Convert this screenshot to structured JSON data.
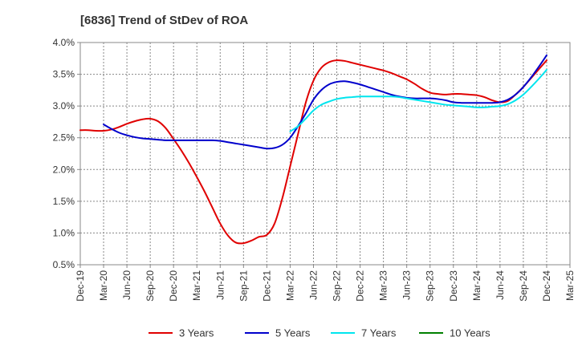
{
  "chart_data": {
    "type": "line",
    "title": "[6836]  Trend of StDev of ROA",
    "xlabel": "",
    "ylabel": "",
    "ylim": [
      0.5,
      4.0
    ],
    "y_ticks": [
      "0.5%",
      "1.0%",
      "1.5%",
      "2.0%",
      "2.5%",
      "3.0%",
      "3.5%",
      "4.0%"
    ],
    "x_ticks": [
      "Dec-19",
      "Mar-20",
      "Jun-20",
      "Sep-20",
      "Dec-20",
      "Mar-21",
      "Jun-21",
      "Sep-21",
      "Dec-21",
      "Mar-22",
      "Jun-22",
      "Sep-22",
      "Dec-22",
      "Mar-23",
      "Jun-23",
      "Sep-23",
      "Dec-23",
      "Mar-24",
      "Jun-24",
      "Sep-24",
      "Dec-24",
      "Mar-25"
    ],
    "grid": true,
    "legend_position": "bottom",
    "series": [
      {
        "name": "3 Years",
        "color": "#e00000",
        "points": [
          [
            "Dec-19",
            2.62
          ],
          [
            "Jan-20",
            2.62
          ],
          [
            "Feb-20",
            2.61
          ],
          [
            "Mar-20",
            2.61
          ],
          [
            "Apr-20",
            2.63
          ],
          [
            "May-20",
            2.67
          ],
          [
            "Jun-20",
            2.72
          ],
          [
            "Jul-20",
            2.76
          ],
          [
            "Aug-20",
            2.79
          ],
          [
            "Sep-20",
            2.8
          ],
          [
            "Oct-20",
            2.76
          ],
          [
            "Nov-20",
            2.65
          ],
          [
            "Dec-20",
            2.48
          ],
          [
            "Jan-21",
            2.3
          ],
          [
            "Feb-21",
            2.1
          ],
          [
            "Mar-21",
            1.88
          ],
          [
            "Apr-21",
            1.65
          ],
          [
            "May-21",
            1.4
          ],
          [
            "Jun-21",
            1.15
          ],
          [
            "Jul-21",
            0.96
          ],
          [
            "Aug-21",
            0.85
          ],
          [
            "Sep-21",
            0.84
          ],
          [
            "Oct-21",
            0.88
          ],
          [
            "Nov-21",
            0.94
          ],
          [
            "Dec-21",
            0.97
          ],
          [
            "Jan-22",
            1.15
          ],
          [
            "Feb-22",
            1.55
          ],
          [
            "Mar-22",
            2.05
          ],
          [
            "Apr-22",
            2.55
          ],
          [
            "May-22",
            3.05
          ],
          [
            "Jun-22",
            3.4
          ],
          [
            "Jul-22",
            3.6
          ],
          [
            "Aug-22",
            3.69
          ],
          [
            "Sep-22",
            3.72
          ],
          [
            "Oct-22",
            3.71
          ],
          [
            "Nov-22",
            3.68
          ],
          [
            "Dec-22",
            3.65
          ],
          [
            "Jan-23",
            3.62
          ],
          [
            "Feb-23",
            3.59
          ],
          [
            "Mar-23",
            3.56
          ],
          [
            "Apr-23",
            3.52
          ],
          [
            "May-23",
            3.47
          ],
          [
            "Jun-23",
            3.42
          ],
          [
            "Jul-23",
            3.35
          ],
          [
            "Aug-23",
            3.27
          ],
          [
            "Sep-23",
            3.21
          ],
          [
            "Oct-23",
            3.19
          ],
          [
            "Nov-23",
            3.18
          ],
          [
            "Dec-23",
            3.19
          ],
          [
            "Jan-24",
            3.19
          ],
          [
            "Feb-24",
            3.18
          ],
          [
            "Mar-24",
            3.17
          ],
          [
            "Apr-24",
            3.14
          ],
          [
            "May-24",
            3.09
          ],
          [
            "Jun-24",
            3.06
          ],
          [
            "Jul-24",
            3.08
          ],
          [
            "Aug-24",
            3.18
          ],
          [
            "Sep-24",
            3.3
          ],
          [
            "Oct-24",
            3.44
          ],
          [
            "Nov-24",
            3.58
          ],
          [
            "Dec-24",
            3.72
          ]
        ]
      },
      {
        "name": "5 Years",
        "color": "#0000cc",
        "points": [
          [
            "Mar-20",
            2.71
          ],
          [
            "Apr-20",
            2.64
          ],
          [
            "May-20",
            2.58
          ],
          [
            "Jun-20",
            2.54
          ],
          [
            "Jul-20",
            2.51
          ],
          [
            "Aug-20",
            2.49
          ],
          [
            "Sep-20",
            2.48
          ],
          [
            "Oct-20",
            2.47
          ],
          [
            "Nov-20",
            2.46
          ],
          [
            "Dec-20",
            2.46
          ],
          [
            "Jan-21",
            2.46
          ],
          [
            "Feb-21",
            2.46
          ],
          [
            "Mar-21",
            2.46
          ],
          [
            "Apr-21",
            2.46
          ],
          [
            "May-21",
            2.46
          ],
          [
            "Jun-21",
            2.45
          ],
          [
            "Jul-21",
            2.43
          ],
          [
            "Aug-21",
            2.41
          ],
          [
            "Sep-21",
            2.39
          ],
          [
            "Oct-21",
            2.37
          ],
          [
            "Nov-21",
            2.35
          ],
          [
            "Dec-21",
            2.33
          ],
          [
            "Jan-22",
            2.34
          ],
          [
            "Feb-22",
            2.39
          ],
          [
            "Mar-22",
            2.5
          ],
          [
            "Apr-22",
            2.68
          ],
          [
            "May-22",
            2.88
          ],
          [
            "Jun-22",
            3.1
          ],
          [
            "Jul-22",
            3.25
          ],
          [
            "Aug-22",
            3.34
          ],
          [
            "Sep-22",
            3.38
          ],
          [
            "Oct-22",
            3.39
          ],
          [
            "Nov-22",
            3.37
          ],
          [
            "Dec-22",
            3.34
          ],
          [
            "Jan-23",
            3.3
          ],
          [
            "Feb-23",
            3.26
          ],
          [
            "Mar-23",
            3.22
          ],
          [
            "Apr-23",
            3.18
          ],
          [
            "May-23",
            3.15
          ],
          [
            "Jun-23",
            3.13
          ],
          [
            "Jul-23",
            3.12
          ],
          [
            "Aug-23",
            3.12
          ],
          [
            "Sep-23",
            3.12
          ],
          [
            "Oct-23",
            3.11
          ],
          [
            "Nov-23",
            3.09
          ],
          [
            "Dec-23",
            3.06
          ],
          [
            "Jan-24",
            3.05
          ],
          [
            "Feb-24",
            3.05
          ],
          [
            "Mar-24",
            3.05
          ],
          [
            "Apr-24",
            3.05
          ],
          [
            "May-24",
            3.05
          ],
          [
            "Jun-24",
            3.06
          ],
          [
            "Jul-24",
            3.1
          ],
          [
            "Aug-24",
            3.18
          ],
          [
            "Sep-24",
            3.3
          ],
          [
            "Oct-24",
            3.45
          ],
          [
            "Nov-24",
            3.62
          ],
          [
            "Dec-24",
            3.8
          ]
        ]
      },
      {
        "name": "7 Years",
        "color": "#00e5ee",
        "points": [
          [
            "Mar-22",
            2.6
          ],
          [
            "Apr-22",
            2.68
          ],
          [
            "May-22",
            2.8
          ],
          [
            "Jun-22",
            2.93
          ],
          [
            "Jul-22",
            3.02
          ],
          [
            "Aug-22",
            3.07
          ],
          [
            "Sep-22",
            3.11
          ],
          [
            "Oct-22",
            3.13
          ],
          [
            "Nov-22",
            3.14
          ],
          [
            "Dec-22",
            3.15
          ],
          [
            "Jan-23",
            3.15
          ],
          [
            "Feb-23",
            3.15
          ],
          [
            "Mar-23",
            3.15
          ],
          [
            "Apr-23",
            3.15
          ],
          [
            "May-23",
            3.14
          ],
          [
            "Jun-23",
            3.12
          ],
          [
            "Jul-23",
            3.1
          ],
          [
            "Aug-23",
            3.08
          ],
          [
            "Sep-23",
            3.06
          ],
          [
            "Oct-23",
            3.04
          ],
          [
            "Nov-23",
            3.02
          ],
          [
            "Dec-23",
            3.01
          ],
          [
            "Jan-24",
            3.0
          ],
          [
            "Feb-24",
            2.99
          ],
          [
            "Mar-24",
            2.98
          ],
          [
            "Apr-24",
            2.98
          ],
          [
            "May-24",
            2.99
          ],
          [
            "Jun-24",
            3.0
          ],
          [
            "Jul-24",
            3.03
          ],
          [
            "Aug-24",
            3.09
          ],
          [
            "Sep-24",
            3.18
          ],
          [
            "Oct-24",
            3.3
          ],
          [
            "Nov-24",
            3.43
          ],
          [
            "Dec-24",
            3.57
          ]
        ]
      },
      {
        "name": "10 Years",
        "color": "#008000",
        "points": []
      }
    ]
  }
}
